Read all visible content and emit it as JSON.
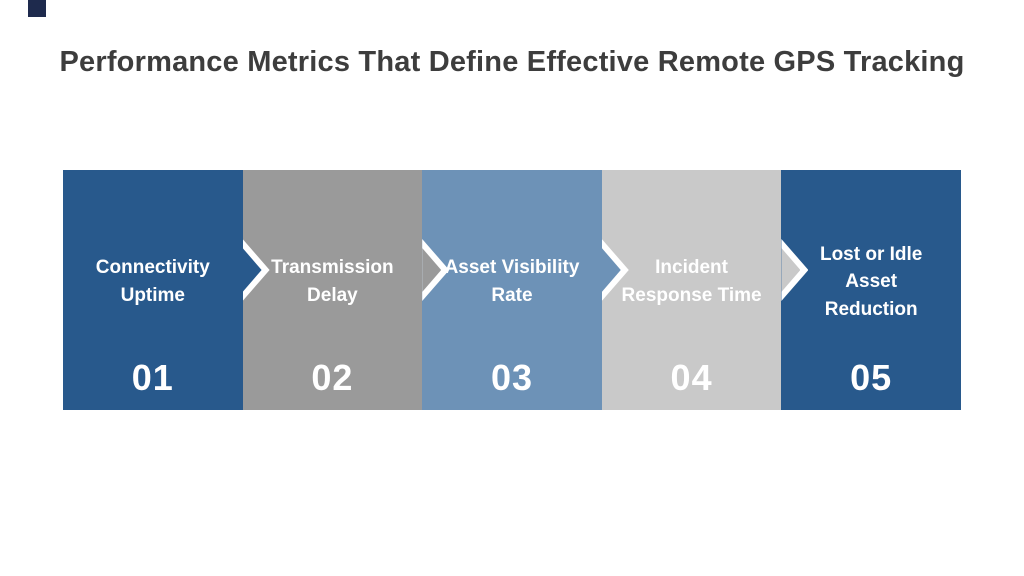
{
  "title": "Performance Metrics That Define Effective Remote GPS Tracking",
  "colors": {
    "background": "#ffffff",
    "title_text": "#3d3d3d",
    "corner_accent": "#1e2a4d",
    "step_text": "#ffffff",
    "chevron_outline": "#ffffff"
  },
  "steps": [
    {
      "label": "Connectivity Uptime",
      "number": "01",
      "color": "#28598c"
    },
    {
      "label": "Transmission Delay",
      "number": "02",
      "color": "#9a9a9a"
    },
    {
      "label": "Asset Visibility Rate",
      "number": "03",
      "color": "#6d92b7"
    },
    {
      "label": "Incident Response Time",
      "number": "04",
      "color": "#c9c9c9"
    },
    {
      "label": "Lost or Idle Asset Reduction",
      "number": "05",
      "color": "#28598c"
    }
  ]
}
